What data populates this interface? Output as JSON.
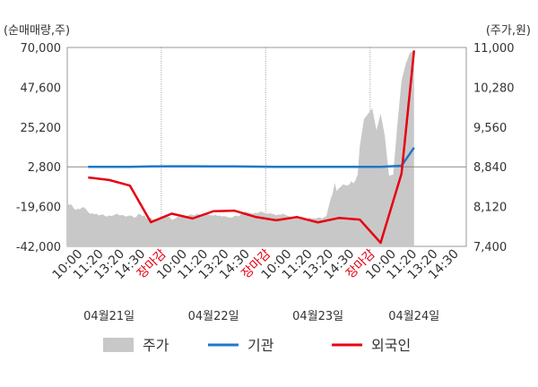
{
  "chart_data": {
    "type": "line",
    "left_axis_label": "(순매매량,주)",
    "right_axis_label": "(주가,원)",
    "left_ticks": [
      70000,
      47600,
      25200,
      2800,
      -19600,
      -42000
    ],
    "left_tick_labels": [
      "70,000",
      "47,600",
      "25,200",
      "2,800",
      "-19,600",
      "-42,000"
    ],
    "left_range": [
      -42000,
      70000
    ],
    "right_ticks": [
      11000,
      10280,
      9560,
      8840,
      8120,
      7400
    ],
    "right_tick_labels": [
      "11,000",
      "10,280",
      "9,560",
      "8,840",
      "8,120",
      "7,400"
    ],
    "right_range": [
      7400,
      11000
    ],
    "x_tick_labels": [
      "10:00",
      "11:20",
      "13:20",
      "14:30",
      "장마감",
      "10:00",
      "11:20",
      "13:20",
      "14:30",
      "장마감",
      "10:00",
      "11:20",
      "13:20",
      "14:30",
      "장마감",
      "10:00",
      "11:20",
      "13:20",
      "14:30"
    ],
    "x_tick_is_close": [
      false,
      false,
      false,
      false,
      true,
      false,
      false,
      false,
      false,
      true,
      false,
      false,
      false,
      false,
      true,
      false,
      false,
      false,
      false
    ],
    "day_labels": [
      "04월21일",
      "04월22일",
      "04월23일",
      "04월24일"
    ],
    "day_label_positions": [
      2,
      7,
      12,
      16.6
    ],
    "close_color": "#e60012",
    "grid_vertical": true,
    "series": [
      {
        "name": "주가",
        "kind": "area",
        "axis": "right",
        "color": "#c8c8c8",
        "x": [
          0,
          0.1,
          0.2,
          0.3,
          0.4,
          0.5,
          0.6,
          0.7,
          0.8,
          0.9,
          1.0,
          1.1,
          1.2,
          1.3,
          1.4,
          1.5,
          1.6,
          1.7,
          1.8,
          1.9,
          2.0,
          2.1,
          2.2,
          2.3,
          2.4,
          2.5,
          2.6,
          2.7,
          2.8,
          2.9,
          3.0,
          3.1,
          3.2,
          3.3,
          3.4,
          3.5,
          3.6,
          3.7,
          3.8,
          3.9,
          4.0,
          4.1,
          4.2,
          4.3,
          4.4,
          4.5,
          4.6,
          4.7,
          4.8,
          4.9,
          5.0,
          5.1,
          5.2,
          5.3,
          5.4,
          5.5,
          5.6,
          5.7,
          5.8,
          5.9,
          6.0,
          6.1,
          6.2,
          6.3,
          6.4,
          6.5,
          6.6,
          6.7,
          6.8,
          6.9,
          7.0,
          7.1,
          7.2,
          7.3,
          7.4,
          7.5,
          7.6,
          7.7,
          7.8,
          7.9,
          8.0,
          8.1,
          8.2,
          8.3,
          8.4,
          8.5,
          8.6,
          8.7,
          8.8,
          8.9,
          9.0,
          9.1,
          9.2,
          9.3,
          9.4,
          9.5,
          9.6,
          9.7,
          9.8,
          9.9,
          10.0,
          10.1,
          10.2,
          10.3,
          10.4,
          10.5,
          10.6,
          10.7,
          10.8,
          10.9,
          11.0,
          11.1,
          11.2,
          11.3,
          11.4,
          11.5,
          11.6,
          11.7,
          11.8,
          11.9,
          12.0,
          12.1,
          12.2,
          12.3,
          12.4,
          12.5,
          12.6,
          12.7,
          12.8,
          12.9,
          13.0,
          13.1,
          13.2,
          13.3,
          13.4,
          13.5,
          13.6,
          13.7,
          13.8,
          13.9,
          14.0,
          14.2,
          14.4,
          14.6,
          14.8,
          15.0,
          15.2,
          15.4,
          15.6,
          15.8,
          16.0,
          16.2,
          16.4,
          16.6,
          16.8,
          17.0,
          17.2,
          17.4,
          17.6,
          17.8,
          18.0,
          18.2,
          18.4,
          18.6,
          18.8,
          19.0,
          19.2,
          19.4
        ],
        "values": [
          8180,
          8150,
          8160,
          8090,
          8060,
          8080,
          8070,
          8100,
          8110,
          8070,
          8020,
          7990,
          8000,
          7980,
          7990,
          7960,
          7970,
          7980,
          7950,
          7940,
          7960,
          7950,
          7960,
          7980,
          7990,
          7960,
          7970,
          7960,
          7940,
          7950,
          7960,
          7950,
          7920,
          7930,
          7990,
          7980,
          7950,
          7960,
          7900,
          7910,
          7920,
          7880,
          7890,
          7870,
          7890,
          7910,
          7930,
          7920,
          7940,
          7930,
          7880,
          7890,
          7910,
          7940,
          7930,
          7950,
          7960,
          7940,
          7960,
          7980,
          7970,
          7960,
          7990,
          7980,
          7960,
          7980,
          7990,
          7990,
          7970,
          7960,
          7960,
          7970,
          7950,
          7960,
          7940,
          7950,
          7940,
          7930,
          7920,
          7920,
          7950,
          7960,
          7940,
          7980,
          8000,
          8030,
          8020,
          8010,
          8000,
          7990,
          8010,
          8000,
          8020,
          8030,
          8010,
          8000,
          7990,
          8000,
          7990,
          7980,
          7960,
          7980,
          7970,
          7990,
          7980,
          7960,
          7950,
          7920,
          7900,
          7900,
          7910,
          7900,
          7890,
          7900,
          7880,
          7890,
          7920,
          7900,
          7910,
          7900,
          7920,
          7920,
          7900,
          7930,
          7950,
          8100,
          8250,
          8350,
          8550,
          8400,
          8450,
          8480,
          8520,
          8510,
          8500,
          8520,
          8580,
          8540,
          8600,
          8700,
          9200,
          9700,
          9800,
          9900,
          9500,
          9800,
          9400,
          8680,
          8700,
          9600,
          10400,
          10700,
          10900,
          10950,
          10960,
          10960,
          10960,
          10960,
          10960,
          10960,
          10960,
          10960,
          10960,
          10960,
          10960,
          10960,
          10960,
          10960
        ],
        "area_end_x": 16.6
      },
      {
        "name": "기관",
        "kind": "line",
        "axis": "left",
        "color": "#1f78c8",
        "x": [
          1,
          2,
          3,
          4,
          5,
          6,
          7,
          8,
          9,
          10,
          11,
          12,
          13,
          14,
          15,
          16,
          16.6
        ],
        "values": [
          2800,
          2800,
          2800,
          3000,
          3100,
          3100,
          3000,
          3000,
          2900,
          2800,
          2800,
          2800,
          2800,
          2800,
          2800,
          3400,
          13600
        ]
      },
      {
        "name": "외국인",
        "kind": "line",
        "axis": "left",
        "color": "#e60012",
        "x": [
          1,
          2,
          3,
          4,
          5,
          6,
          7,
          8,
          9,
          10,
          11,
          12,
          13,
          14,
          15,
          16,
          16.6
        ],
        "values": [
          -3200,
          -4600,
          -7800,
          -28400,
          -23600,
          -26300,
          -22200,
          -21900,
          -25400,
          -27300,
          -25500,
          -28500,
          -26000,
          -26900,
          -40000,
          -1000,
          68300
        ]
      }
    ],
    "legend": [
      {
        "name": "주가",
        "kind": "area",
        "color": "#c8c8c8"
      },
      {
        "name": "기관",
        "kind": "line",
        "color": "#1f78c8"
      },
      {
        "name": "외국인",
        "kind": "line",
        "color": "#e60012"
      }
    ]
  }
}
